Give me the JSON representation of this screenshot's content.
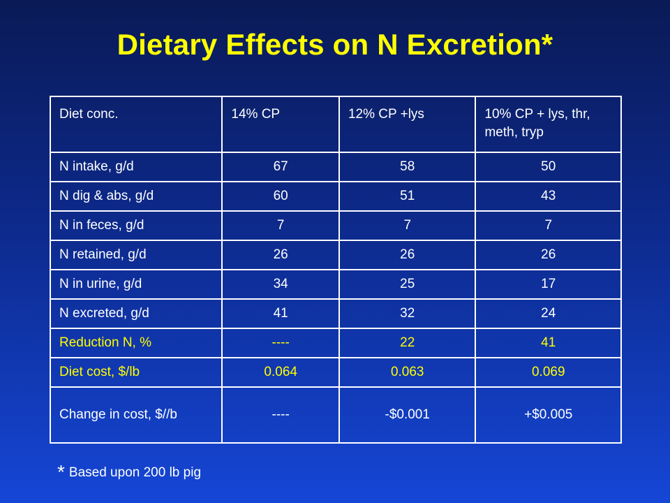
{
  "title": "Dietary Effects on N Excretion*",
  "table": {
    "headers": [
      "Diet conc.",
      "14% CP",
      "12% CP +lys",
      "10% CP + lys, thr, meth, tryp"
    ],
    "rows": [
      {
        "label": "N intake, g/d",
        "values": [
          "67",
          "58",
          "50"
        ],
        "highlight": false
      },
      {
        "label": "N dig & abs, g/d",
        "values": [
          "60",
          "51",
          "43"
        ],
        "highlight": false
      },
      {
        "label": "N in feces, g/d",
        "values": [
          "7",
          "7",
          "7"
        ],
        "highlight": false
      },
      {
        "label": "N retained, g/d",
        "values": [
          "26",
          "26",
          "26"
        ],
        "highlight": false
      },
      {
        "label": "N in urine, g/d",
        "values": [
          "34",
          "25",
          "17"
        ],
        "highlight": false
      },
      {
        "label": "N excreted, g/d",
        "values": [
          "41",
          "32",
          "24"
        ],
        "highlight": false
      },
      {
        "label": "Reduction N, %",
        "values": [
          "----",
          "22",
          "41"
        ],
        "highlight": true
      },
      {
        "label": "Diet cost, $/lb",
        "values": [
          "0.064",
          "0.063",
          "0.069"
        ],
        "highlight": true
      },
      {
        "label": "Change in cost, $//b",
        "values": [
          "----",
          "-$0.001",
          "+$0.005"
        ],
        "highlight": false
      }
    ]
  },
  "footnote": {
    "star": "*",
    "text": "Based upon 200 lb pig"
  },
  "colors": {
    "title": "#ffff00",
    "highlight_text": "#ffff00",
    "text": "#ffffff",
    "background_top": "#0a1a56",
    "background_bottom": "#1546d6"
  }
}
